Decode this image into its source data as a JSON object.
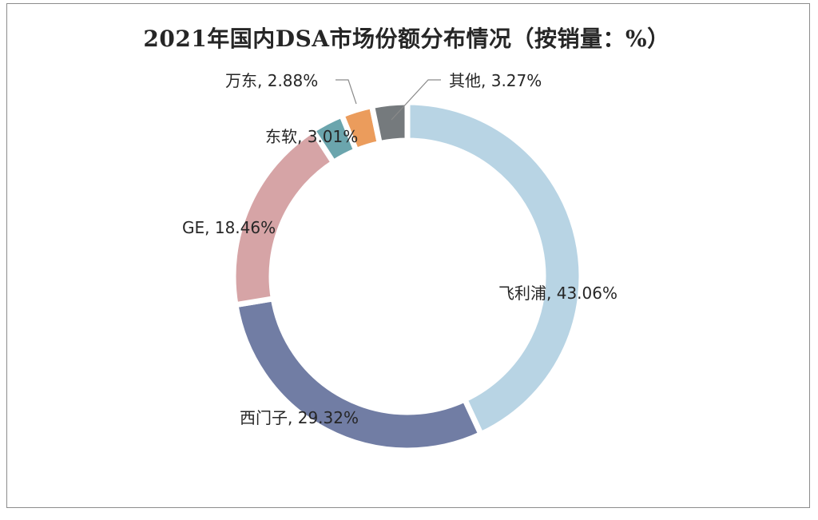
{
  "chart_data": {
    "type": "pie",
    "title": "2021年国内DSA市场份额分布情况（按销量：%）",
    "donut": true,
    "slices": [
      {
        "name": "飞利浦",
        "value": 43.06,
        "label": "飞利浦, 43.06%",
        "color": "#b8d4e4"
      },
      {
        "name": "西门子",
        "value": 29.32,
        "label": "西门子, 29.32%",
        "color": "#717da4"
      },
      {
        "name": "GE",
        "value": 18.46,
        "label": "GE, 18.46%",
        "color": "#d6a4a6"
      },
      {
        "name": "东软",
        "value": 3.01,
        "label": "东软, 3.01%",
        "color": "#6ba5ad"
      },
      {
        "name": "万东",
        "value": 2.88,
        "label": "万东, 2.88%",
        "color": "#eb9c5c"
      },
      {
        "name": "其他",
        "value": 3.27,
        "label": "其他, 3.27%",
        "color": "#757a7d"
      }
    ]
  }
}
